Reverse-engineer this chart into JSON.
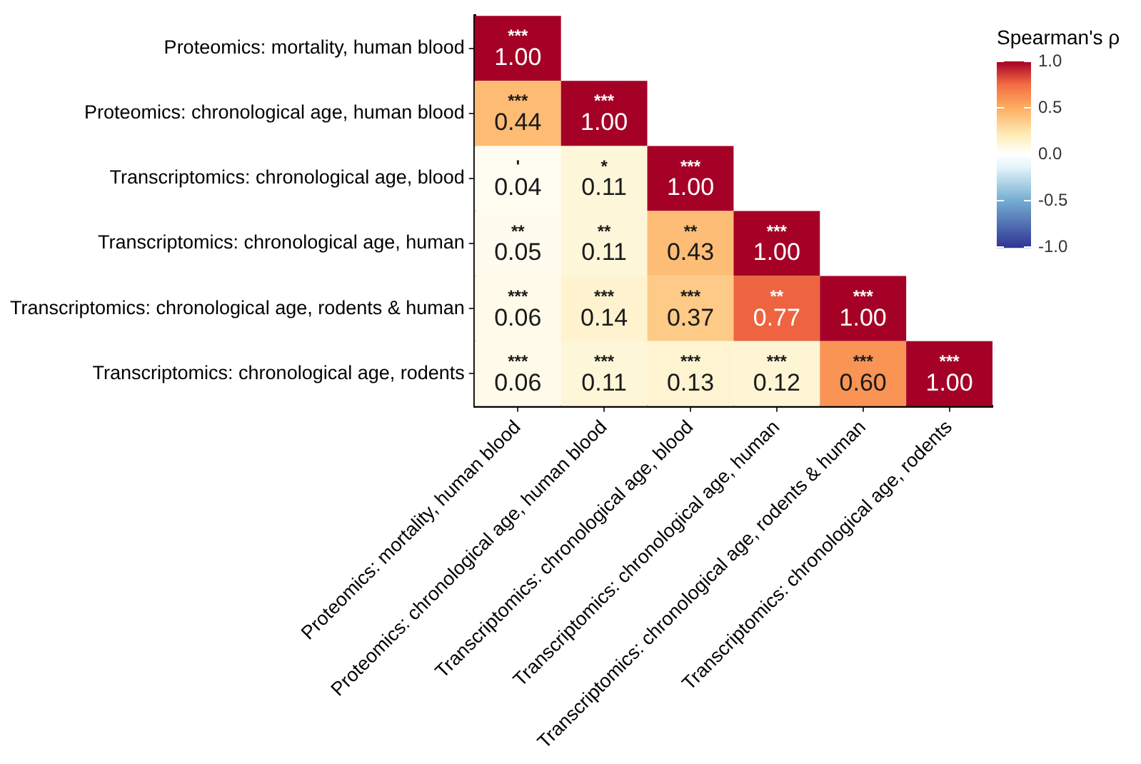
{
  "chart_data": {
    "type": "heatmap",
    "clabel": "Spearman's ρ",
    "categories": [
      "Proteomics: mortality, human blood",
      "Proteomics: chronological age, human blood",
      "Transcriptomics: chronological age, blood",
      "Transcriptomics: chronological age, human",
      "Transcriptomics: chronological age, rodents & human",
      "Transcriptomics: chronological age, rodents"
    ],
    "y_categories": [
      "Proteomics: mortality, human blood",
      "Proteomics: chronological age, human blood",
      "Transcriptomics: chronological age, blood",
      "Transcriptomics: chronological age, human",
      "Transcriptomics: chronological age, rodents & human",
      "Transcriptomics: chronological age, rodents"
    ],
    "cells": [
      [
        1.0,
        null,
        null,
        null,
        null,
        null
      ],
      [
        0.44,
        1.0,
        null,
        null,
        null,
        null
      ],
      [
        0.04,
        0.11,
        1.0,
        null,
        null,
        null
      ],
      [
        0.05,
        0.11,
        0.43,
        1.0,
        null,
        null
      ],
      [
        0.06,
        0.14,
        0.37,
        0.77,
        1.0,
        null
      ],
      [
        0.06,
        0.11,
        0.13,
        0.12,
        0.6,
        1.0
      ]
    ],
    "cell_labels": [
      [
        "***\n1.00",
        null,
        null,
        null,
        null,
        null
      ],
      [
        "***\n0.44",
        "***\n1.00",
        null,
        null,
        null,
        null
      ],
      [
        "'\n0.04",
        "*\n0.11",
        "***\n1.00",
        null,
        null,
        null
      ],
      [
        "**\n0.05",
        "**\n0.11",
        "**\n0.43",
        "***\n1.00",
        null,
        null
      ],
      [
        "***\n0.06",
        "***\n0.14",
        "***\n0.37",
        "**\n0.77",
        "***\n1.00",
        null
      ],
      [
        "***\n0.06",
        "***\n0.11",
        "***\n0.13",
        "***\n0.12",
        "***\n0.60",
        "***\n1.00"
      ]
    ],
    "clim": [
      -1,
      1
    ],
    "cticks": [
      {
        "value": 1,
        "label": "1.0"
      },
      {
        "value": 0.5,
        "label": "0.5"
      },
      {
        "value": 0,
        "label": "0.0"
      },
      {
        "value": -0.5,
        "label": "-0.5"
      },
      {
        "value": -1,
        "label": "-1.0"
      }
    ]
  }
}
